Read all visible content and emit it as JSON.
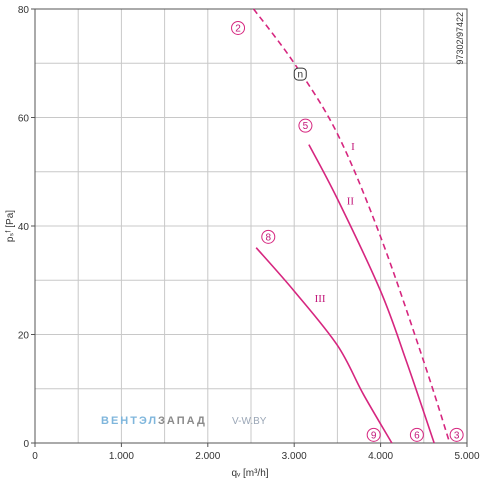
{
  "chart_data": {
    "type": "line",
    "xlabel": "qᵥ [m³/h]",
    "ylabel": "pₛᶠ [Pa]",
    "xlim": [
      0,
      5000
    ],
    "ylim": [
      0,
      80
    ],
    "x_ticks": [
      {
        "value": 0,
        "label": "0"
      },
      {
        "value": 1000,
        "label": "1.000"
      },
      {
        "value": 2000,
        "label": "2.000"
      },
      {
        "value": 3000,
        "label": "3.000"
      },
      {
        "value": 4000,
        "label": "4.000"
      },
      {
        "value": 5000,
        "label": "5.000"
      }
    ],
    "y_ticks": [
      {
        "value": 0,
        "label": "0"
      },
      {
        "value": 20,
        "label": "20"
      },
      {
        "value": 40,
        "label": "40"
      },
      {
        "value": 60,
        "label": "60"
      },
      {
        "value": 80,
        "label": "80"
      }
    ],
    "grid": true,
    "series": [
      {
        "name": "I",
        "style": "dashed",
        "x": [
          2530,
          3000,
          3500,
          4000,
          4500,
          4800
        ],
        "y": [
          80,
          70,
          57,
          38,
          15,
          0
        ]
      },
      {
        "name": "II",
        "style": "solid",
        "x": [
          3170,
          3500,
          4000,
          4300,
          4620
        ],
        "y": [
          55,
          45,
          28,
          15,
          0
        ]
      },
      {
        "name": "III",
        "style": "solid",
        "x": [
          2560,
          3000,
          3500,
          3800,
          4130
        ],
        "y": [
          36,
          28,
          18,
          9,
          0
        ]
      }
    ],
    "series_labels": [
      {
        "text": "I",
        "x": 3680,
        "y": 54
      },
      {
        "text": "II",
        "x": 3650,
        "y": 44
      },
      {
        "text": "III",
        "x": 3300,
        "y": 26
      }
    ],
    "markers": [
      {
        "text": "2",
        "x": 2350,
        "y": 76.5,
        "shape": "circle"
      },
      {
        "text": "5",
        "x": 3130,
        "y": 58.5,
        "shape": "circle"
      },
      {
        "text": "8",
        "x": 2700,
        "y": 38,
        "shape": "circle"
      },
      {
        "text": "9",
        "x": 3920,
        "y": 1.5,
        "shape": "circle"
      },
      {
        "text": "6",
        "x": 4420,
        "y": 1.5,
        "shape": "circle"
      },
      {
        "text": "3",
        "x": 4880,
        "y": 1.5,
        "shape": "circle"
      },
      {
        "text": "n",
        "x": 3070,
        "y": 68,
        "shape": "square"
      }
    ],
    "colors": {
      "curve": "#d6267f",
      "grid": "#c8c8c8",
      "axis": "#555555"
    },
    "code": "97302/97422"
  },
  "watermark": {
    "part1": "ВЕНТЭЛ",
    "part2": "ЗАПАД",
    "part3": "V-W.BY"
  }
}
